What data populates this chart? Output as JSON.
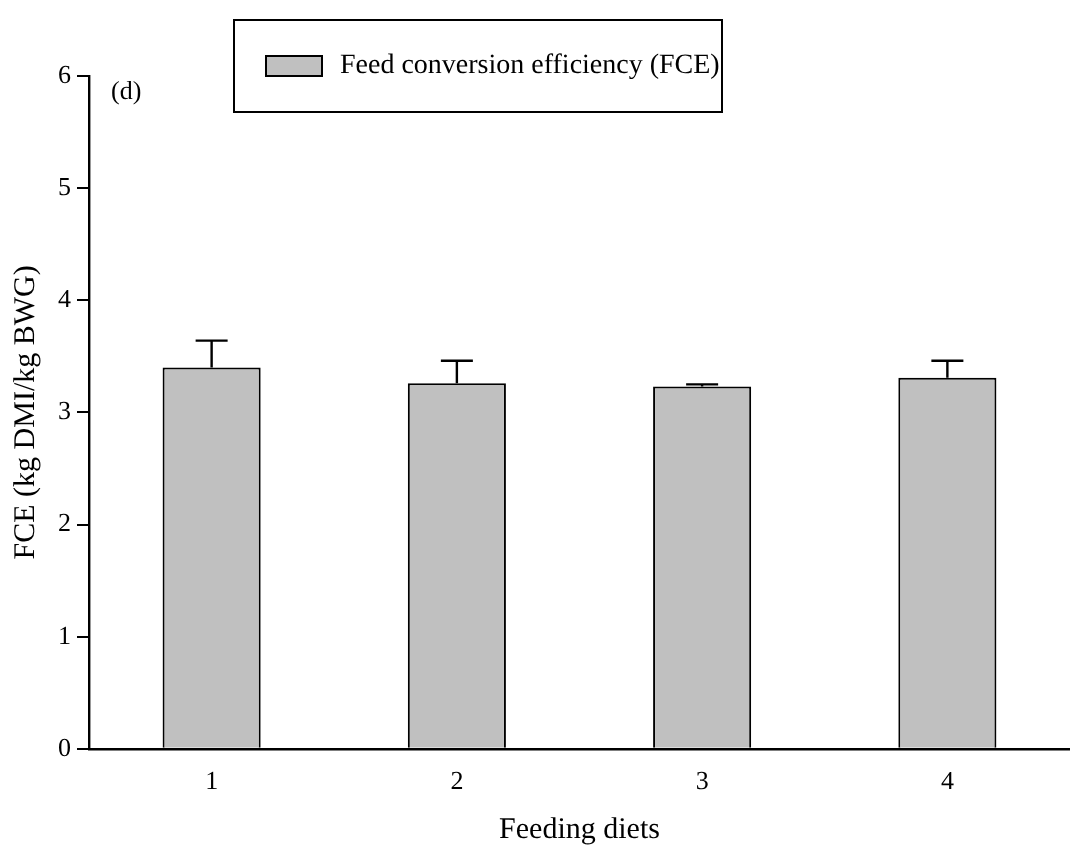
{
  "chart_data": {
    "type": "bar",
    "xlabel": "Feeding diets",
    "ylabel": "FCE (kg DMI/kg BWG)",
    "annotations": [
      "(d)"
    ],
    "categories": [
      "1",
      "2",
      "3",
      "4"
    ],
    "series": [
      {
        "name": "Feed conversion efficiency (FCE)",
        "color": "#c0c0c0",
        "values": [
          3.4,
          3.26,
          3.23,
          3.31
        ],
        "errors": [
          [
            3.4,
            3.64
          ],
          [
            3.26,
            3.46
          ],
          [
            3.23,
            3.25
          ],
          [
            3.31,
            3.46
          ]
        ]
      }
    ],
    "ylim": [
      0,
      6
    ],
    "yticks": [
      0,
      1,
      2,
      3,
      4,
      5,
      6
    ],
    "grid": false,
    "legend": "top"
  }
}
